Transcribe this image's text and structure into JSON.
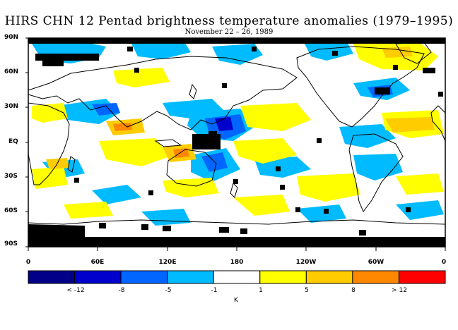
{
  "title": "HIRS CHN 12 Pentad brightness temperature anomalies (1979–1995)",
  "subtitle": "November 22 – 26, 1989",
  "lat_labels": [
    "90N",
    "60N",
    "30N",
    "EQ",
    "30S",
    "60S",
    "90S"
  ],
  "lon_labels": [
    "0",
    "60E",
    "120E",
    "180",
    "120W",
    "60W",
    "0"
  ],
  "colorbar": {
    "colors": [
      "#000088",
      "#0000cc",
      "#0066ff",
      "#00bbff",
      "#ffffff",
      "#ffff00",
      "#ffcc00",
      "#ff8800",
      "#ff0000"
    ],
    "labels": [
      "< -12",
      "-8",
      "-5",
      "-1",
      "1",
      "5",
      "8",
      "> 12"
    ],
    "unit": "K"
  }
}
